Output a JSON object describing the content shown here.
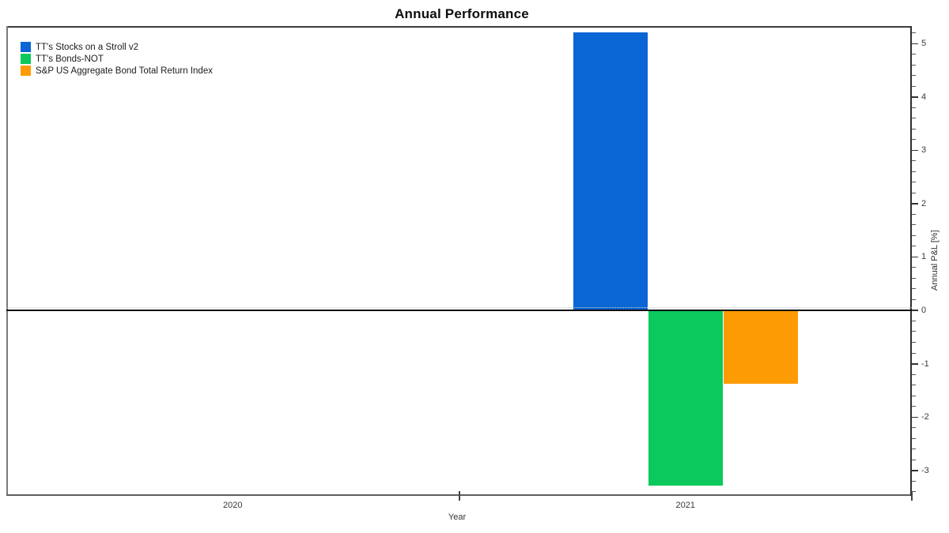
{
  "page": {
    "title": "Annual Performance"
  },
  "chart_data": {
    "type": "bar",
    "title": "Annual Performance",
    "xlabel": "Year",
    "ylabel": "Annual P&L [%]",
    "categories": [
      "2020",
      "2021"
    ],
    "series": [
      {
        "name": "TT's Stocks on a Stroll v2",
        "color": "#0a66d4",
        "values": [
          null,
          5.21
        ]
      },
      {
        "name": "TT's Bonds-NOT",
        "color": "#0bc95c",
        "values": [
          null,
          -3.29
        ]
      },
      {
        "name": "S&P US Aggregate Bond Total Return Index",
        "color": "#fc9b03",
        "values": [
          null,
          -1.38
        ]
      }
    ],
    "ylim": [
      -3.48,
      5.33
    ],
    "y_major_ticks": [
      5,
      4,
      3,
      2,
      1,
      0,
      -1,
      -2,
      -3
    ],
    "y_minor_step": 0.2,
    "zero_line": true,
    "grid": false,
    "legend_position": "top-left-inside"
  },
  "colors": {
    "axis_text": "#3a3a3a",
    "zero_line": "#111111",
    "plot_border": "#5f5f5f"
  }
}
